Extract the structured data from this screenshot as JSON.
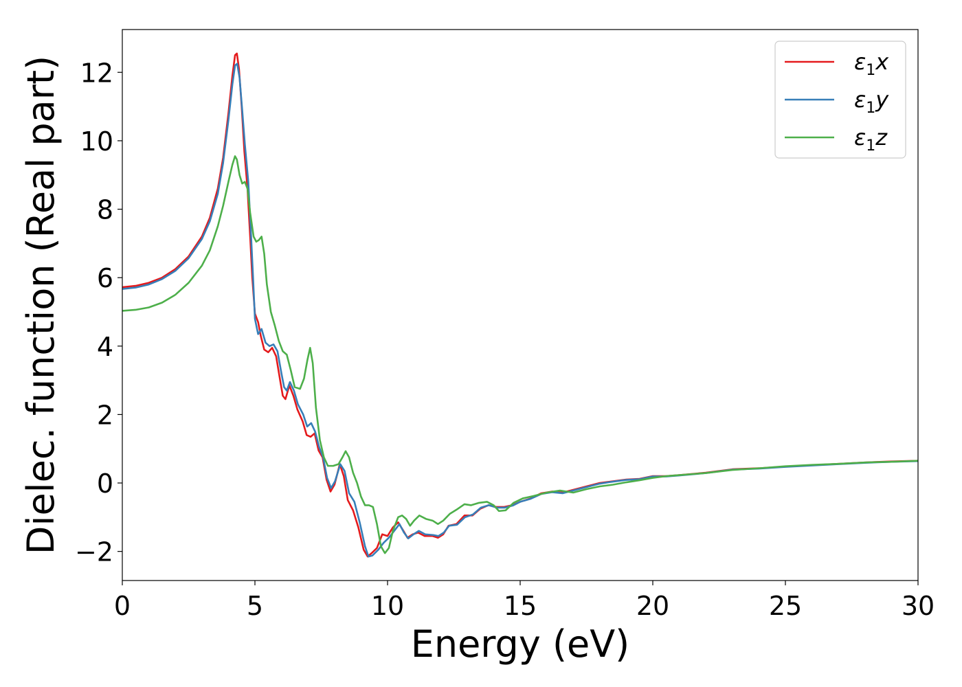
{
  "chart_data": {
    "type": "line",
    "xlabel": "Energy (eV)",
    "ylabel": "Dielec. function (Real part)",
    "xlim": [
      0,
      30
    ],
    "ylim": [
      -2.85,
      13.25
    ],
    "xticks": [
      0,
      5,
      10,
      15,
      20,
      25,
      30
    ],
    "yticks": [
      -2,
      0,
      2,
      4,
      6,
      8,
      10,
      12
    ],
    "xtick_labels": [
      "0",
      "5",
      "10",
      "15",
      "20",
      "25",
      "30"
    ],
    "ytick_labels": [
      "−2",
      "0",
      "2",
      "4",
      "6",
      "8",
      "10",
      "12"
    ],
    "grid": false,
    "legend_position": "top-right",
    "series": [
      {
        "name": "ε1x",
        "legend_base": "ε",
        "legend_sub": "1",
        "legend_var": "x",
        "color": "#e41a1c",
        "points": [
          [
            0,
            5.72
          ],
          [
            0.5,
            5.76
          ],
          [
            1.0,
            5.85
          ],
          [
            1.5,
            6.0
          ],
          [
            2.0,
            6.25
          ],
          [
            2.5,
            6.62
          ],
          [
            3.0,
            7.2
          ],
          [
            3.3,
            7.75
          ],
          [
            3.6,
            8.6
          ],
          [
            3.8,
            9.5
          ],
          [
            4.0,
            10.8
          ],
          [
            4.15,
            11.9
          ],
          [
            4.25,
            12.5
          ],
          [
            4.32,
            12.55
          ],
          [
            4.4,
            12.1
          ],
          [
            4.5,
            11.0
          ],
          [
            4.6,
            9.7
          ],
          [
            4.72,
            8.6
          ],
          [
            4.82,
            7.2
          ],
          [
            4.9,
            6.0
          ],
          [
            5.0,
            4.95
          ],
          [
            5.12,
            4.7
          ],
          [
            5.22,
            4.3
          ],
          [
            5.35,
            3.9
          ],
          [
            5.5,
            3.82
          ],
          [
            5.65,
            3.95
          ],
          [
            5.8,
            3.7
          ],
          [
            5.95,
            3.0
          ],
          [
            6.05,
            2.55
          ],
          [
            6.15,
            2.45
          ],
          [
            6.3,
            2.85
          ],
          [
            6.45,
            2.55
          ],
          [
            6.6,
            2.15
          ],
          [
            6.8,
            1.8
          ],
          [
            6.95,
            1.4
          ],
          [
            7.1,
            1.35
          ],
          [
            7.25,
            1.45
          ],
          [
            7.4,
            0.95
          ],
          [
            7.55,
            0.75
          ],
          [
            7.7,
            0.1
          ],
          [
            7.85,
            -0.25
          ],
          [
            8.0,
            -0.05
          ],
          [
            8.2,
            0.55
          ],
          [
            8.35,
            0.2
          ],
          [
            8.5,
            -0.5
          ],
          [
            8.7,
            -0.8
          ],
          [
            8.9,
            -1.3
          ],
          [
            9.1,
            -1.95
          ],
          [
            9.25,
            -2.15
          ],
          [
            9.4,
            -2.05
          ],
          [
            9.6,
            -1.9
          ],
          [
            9.8,
            -1.5
          ],
          [
            10.0,
            -1.55
          ],
          [
            10.2,
            -1.3
          ],
          [
            10.4,
            -1.15
          ],
          [
            10.6,
            -1.4
          ],
          [
            10.75,
            -1.6
          ],
          [
            10.95,
            -1.5
          ],
          [
            11.15,
            -1.45
          ],
          [
            11.4,
            -1.55
          ],
          [
            11.7,
            -1.55
          ],
          [
            11.9,
            -1.6
          ],
          [
            12.1,
            -1.5
          ],
          [
            12.3,
            -1.25
          ],
          [
            12.6,
            -1.2
          ],
          [
            12.9,
            -0.95
          ],
          [
            13.2,
            -0.95
          ],
          [
            13.5,
            -0.75
          ],
          [
            13.8,
            -0.65
          ],
          [
            14.1,
            -0.7
          ],
          [
            14.4,
            -0.7
          ],
          [
            14.7,
            -0.65
          ],
          [
            15.0,
            -0.55
          ],
          [
            15.4,
            -0.45
          ],
          [
            15.8,
            -0.3
          ],
          [
            16.2,
            -0.25
          ],
          [
            16.6,
            -0.28
          ],
          [
            17.0,
            -0.2
          ],
          [
            17.5,
            -0.1
          ],
          [
            18.0,
            0.0
          ],
          [
            18.5,
            0.05
          ],
          [
            19.0,
            0.1
          ],
          [
            19.5,
            0.12
          ],
          [
            20.0,
            0.2
          ],
          [
            20.5,
            0.2
          ],
          [
            21.0,
            0.23
          ],
          [
            22.0,
            0.3
          ],
          [
            23.0,
            0.4
          ],
          [
            24.0,
            0.43
          ],
          [
            25.0,
            0.48
          ],
          [
            26.0,
            0.52
          ],
          [
            27.0,
            0.56
          ],
          [
            28.0,
            0.6
          ],
          [
            29.0,
            0.63
          ],
          [
            30.0,
            0.65
          ]
        ]
      },
      {
        "name": "ε1y",
        "legend_base": "ε",
        "legend_sub": "1",
        "legend_var": "y",
        "color": "#377eb8",
        "points": [
          [
            0,
            5.67
          ],
          [
            0.5,
            5.71
          ],
          [
            1.0,
            5.8
          ],
          [
            1.5,
            5.96
          ],
          [
            2.0,
            6.2
          ],
          [
            2.5,
            6.57
          ],
          [
            3.0,
            7.13
          ],
          [
            3.3,
            7.65
          ],
          [
            3.6,
            8.45
          ],
          [
            3.8,
            9.35
          ],
          [
            4.0,
            10.6
          ],
          [
            4.15,
            11.65
          ],
          [
            4.25,
            12.2
          ],
          [
            4.33,
            12.25
          ],
          [
            4.42,
            11.85
          ],
          [
            4.52,
            10.9
          ],
          [
            4.62,
            9.9
          ],
          [
            4.75,
            8.8
          ],
          [
            4.85,
            7.3
          ],
          [
            4.93,
            6.0
          ],
          [
            5.0,
            4.8
          ],
          [
            5.12,
            4.35
          ],
          [
            5.25,
            4.5
          ],
          [
            5.4,
            4.1
          ],
          [
            5.55,
            4.0
          ],
          [
            5.7,
            4.05
          ],
          [
            5.85,
            3.85
          ],
          [
            6.0,
            3.2
          ],
          [
            6.1,
            2.8
          ],
          [
            6.2,
            2.7
          ],
          [
            6.32,
            2.95
          ],
          [
            6.47,
            2.7
          ],
          [
            6.62,
            2.3
          ],
          [
            6.82,
            2.0
          ],
          [
            6.97,
            1.65
          ],
          [
            7.12,
            1.75
          ],
          [
            7.27,
            1.5
          ],
          [
            7.42,
            1.05
          ],
          [
            7.57,
            0.75
          ],
          [
            7.72,
            0.15
          ],
          [
            7.87,
            -0.15
          ],
          [
            8.02,
            0.05
          ],
          [
            8.22,
            0.55
          ],
          [
            8.38,
            0.35
          ],
          [
            8.55,
            -0.3
          ],
          [
            8.75,
            -0.55
          ],
          [
            8.95,
            -1.15
          ],
          [
            9.15,
            -1.85
          ],
          [
            9.28,
            -2.15
          ],
          [
            9.43,
            -2.12
          ],
          [
            9.65,
            -1.95
          ],
          [
            9.85,
            -1.75
          ],
          [
            10.05,
            -1.6
          ],
          [
            10.25,
            -1.4
          ],
          [
            10.45,
            -1.2
          ],
          [
            10.62,
            -1.45
          ],
          [
            10.78,
            -1.62
          ],
          [
            10.98,
            -1.5
          ],
          [
            11.18,
            -1.4
          ],
          [
            11.42,
            -1.5
          ],
          [
            11.72,
            -1.52
          ],
          [
            11.92,
            -1.55
          ],
          [
            12.12,
            -1.45
          ],
          [
            12.32,
            -1.25
          ],
          [
            12.62,
            -1.22
          ],
          [
            12.92,
            -1.0
          ],
          [
            13.22,
            -0.92
          ],
          [
            13.52,
            -0.72
          ],
          [
            13.82,
            -0.65
          ],
          [
            14.12,
            -0.72
          ],
          [
            14.42,
            -0.72
          ],
          [
            14.72,
            -0.66
          ],
          [
            15.0,
            -0.55
          ],
          [
            15.4,
            -0.46
          ],
          [
            15.8,
            -0.32
          ],
          [
            16.2,
            -0.27
          ],
          [
            16.6,
            -0.3
          ],
          [
            17.0,
            -0.22
          ],
          [
            17.5,
            -0.12
          ],
          [
            18.0,
            -0.02
          ],
          [
            18.5,
            0.04
          ],
          [
            19.0,
            0.09
          ],
          [
            19.5,
            0.11
          ],
          [
            20.0,
            0.19
          ],
          [
            20.5,
            0.19
          ],
          [
            21.0,
            0.22
          ],
          [
            22.0,
            0.29
          ],
          [
            23.0,
            0.39
          ],
          [
            24.0,
            0.42
          ],
          [
            25.0,
            0.47
          ],
          [
            26.0,
            0.51
          ],
          [
            27.0,
            0.55
          ],
          [
            28.0,
            0.59
          ],
          [
            29.0,
            0.62
          ],
          [
            30.0,
            0.64
          ]
        ]
      },
      {
        "name": "ε1z",
        "legend_base": "ε",
        "legend_sub": "1",
        "legend_var": "z",
        "color": "#4daf4a",
        "points": [
          [
            0,
            5.03
          ],
          [
            0.5,
            5.06
          ],
          [
            1.0,
            5.13
          ],
          [
            1.5,
            5.27
          ],
          [
            2.0,
            5.5
          ],
          [
            2.5,
            5.85
          ],
          [
            3.0,
            6.35
          ],
          [
            3.3,
            6.8
          ],
          [
            3.6,
            7.5
          ],
          [
            3.8,
            8.1
          ],
          [
            4.0,
            8.8
          ],
          [
            4.15,
            9.3
          ],
          [
            4.25,
            9.55
          ],
          [
            4.32,
            9.45
          ],
          [
            4.42,
            9.0
          ],
          [
            4.52,
            8.75
          ],
          [
            4.62,
            8.8
          ],
          [
            4.72,
            8.6
          ],
          [
            4.82,
            7.9
          ],
          [
            4.95,
            7.2
          ],
          [
            5.05,
            7.05
          ],
          [
            5.15,
            7.1
          ],
          [
            5.25,
            7.2
          ],
          [
            5.35,
            6.7
          ],
          [
            5.45,
            5.8
          ],
          [
            5.6,
            5.0
          ],
          [
            5.75,
            4.6
          ],
          [
            5.9,
            4.15
          ],
          [
            6.05,
            3.85
          ],
          [
            6.2,
            3.75
          ],
          [
            6.35,
            3.3
          ],
          [
            6.5,
            2.8
          ],
          [
            6.7,
            2.75
          ],
          [
            6.85,
            3.05
          ],
          [
            6.98,
            3.6
          ],
          [
            7.08,
            3.95
          ],
          [
            7.18,
            3.5
          ],
          [
            7.3,
            2.2
          ],
          [
            7.45,
            1.25
          ],
          [
            7.6,
            0.75
          ],
          [
            7.75,
            0.5
          ],
          [
            7.95,
            0.5
          ],
          [
            8.15,
            0.55
          ],
          [
            8.3,
            0.75
          ],
          [
            8.42,
            0.93
          ],
          [
            8.55,
            0.75
          ],
          [
            8.7,
            0.3
          ],
          [
            8.85,
            0.0
          ],
          [
            9.0,
            -0.4
          ],
          [
            9.15,
            -0.65
          ],
          [
            9.3,
            -0.65
          ],
          [
            9.45,
            -0.7
          ],
          [
            9.6,
            -1.2
          ],
          [
            9.75,
            -1.85
          ],
          [
            9.9,
            -2.05
          ],
          [
            10.05,
            -1.9
          ],
          [
            10.2,
            -1.4
          ],
          [
            10.4,
            -1.0
          ],
          [
            10.55,
            -0.95
          ],
          [
            10.7,
            -1.05
          ],
          [
            10.85,
            -1.25
          ],
          [
            11.0,
            -1.1
          ],
          [
            11.2,
            -0.95
          ],
          [
            11.45,
            -1.05
          ],
          [
            11.7,
            -1.1
          ],
          [
            11.9,
            -1.2
          ],
          [
            12.1,
            -1.1
          ],
          [
            12.35,
            -0.9
          ],
          [
            12.6,
            -0.78
          ],
          [
            12.9,
            -0.62
          ],
          [
            13.15,
            -0.65
          ],
          [
            13.45,
            -0.58
          ],
          [
            13.75,
            -0.55
          ],
          [
            14.0,
            -0.65
          ],
          [
            14.2,
            -0.82
          ],
          [
            14.45,
            -0.8
          ],
          [
            14.75,
            -0.58
          ],
          [
            15.1,
            -0.45
          ],
          [
            15.5,
            -0.38
          ],
          [
            16.0,
            -0.28
          ],
          [
            16.5,
            -0.22
          ],
          [
            17.0,
            -0.28
          ],
          [
            17.5,
            -0.18
          ],
          [
            18.0,
            -0.1
          ],
          [
            18.5,
            -0.05
          ],
          [
            19.0,
            0.02
          ],
          [
            19.5,
            0.08
          ],
          [
            20.0,
            0.15
          ],
          [
            20.5,
            0.2
          ],
          [
            21.0,
            0.23
          ],
          [
            22.0,
            0.29
          ],
          [
            23.0,
            0.38
          ],
          [
            24.0,
            0.43
          ],
          [
            25.0,
            0.49
          ],
          [
            26.0,
            0.53
          ],
          [
            27.0,
            0.56
          ],
          [
            28.0,
            0.6
          ],
          [
            29.0,
            0.62
          ],
          [
            30.0,
            0.65
          ]
        ]
      }
    ]
  }
}
